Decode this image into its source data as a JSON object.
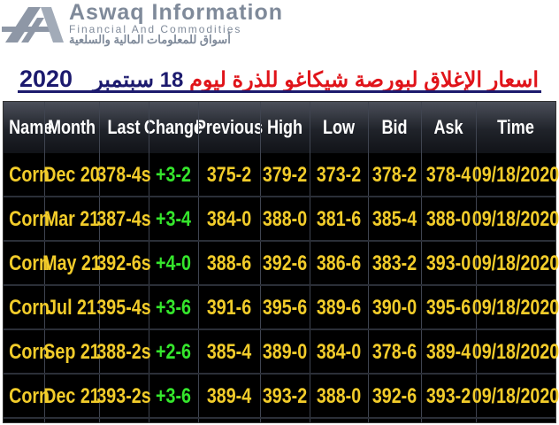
{
  "logo": {
    "name": "Aswaq Information",
    "tagline": "Financial And Commodities",
    "arabic": "أسواق للمعلومات المالية والسلعية",
    "color": "#7f8a9a"
  },
  "title": {
    "year": "2020",
    "arabic": "اسعار الإغلاق لبورصة شيكاغو للذرة ليوم",
    "day": "18",
    "month": "سبتمبر",
    "colors": {
      "arabic": "#e0141a",
      "date": "#1c1a6e"
    }
  },
  "table": {
    "columns": [
      "Name",
      "Month",
      "Last",
      "Change",
      "Previous",
      "High",
      "Low",
      "Bid",
      "Ask",
      "Time"
    ],
    "colors": {
      "header_text": "#ffffff",
      "values": "#f2cc2a",
      "change": "#35e62c",
      "background": "#000000"
    },
    "rows": [
      [
        "Corn",
        "Dec 20",
        "378-4s",
        "+3-2",
        "375-2",
        "379-2",
        "373-2",
        "378-2",
        "378-4",
        "09/18/2020"
      ],
      [
        "Corn",
        "Mar 21",
        "387-4s",
        "+3-4",
        "384-0",
        "388-0",
        "381-6",
        "385-4",
        "388-0",
        "09/18/2020"
      ],
      [
        "Corn",
        "May 21",
        "392-6s",
        "+4-0",
        "388-6",
        "392-6",
        "386-6",
        "383-2",
        "393-0",
        "09/18/2020"
      ],
      [
        "Corn",
        "Jul 21",
        "395-4s",
        "+3-6",
        "391-6",
        "395-6",
        "389-6",
        "390-0",
        "395-6",
        "09/18/2020"
      ],
      [
        "Corn",
        "Sep 21",
        "388-2s",
        "+2-6",
        "385-4",
        "389-0",
        "384-0",
        "378-6",
        "389-4",
        "09/18/2020"
      ],
      [
        "Corn",
        "Dec 21",
        "393-2s",
        "+3-6",
        "389-4",
        "393-2",
        "388-0",
        "392-6",
        "393-2",
        "09/18/2020"
      ]
    ]
  }
}
